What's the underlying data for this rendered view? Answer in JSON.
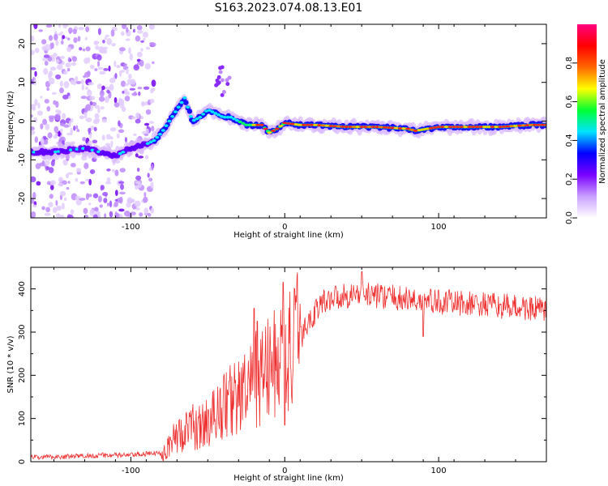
{
  "title": "S163.2023.074.08.13.E01",
  "chart_data": [
    {
      "type": "heatmap",
      "xlabel": "Height of straight line (km)",
      "ylabel": "Frequency (Hz)",
      "xlim": [
        -165,
        170
      ],
      "ylim": [
        -25,
        25
      ],
      "xticks": [
        -100,
        0,
        100
      ],
      "yticks": [
        -20,
        -10,
        0,
        10,
        20
      ],
      "colorbar": {
        "label": "Normalized spectral amplitude",
        "range": [
          0.0,
          1.0
        ],
        "ticks": [
          "0.0",
          "0.2",
          "0.4",
          "0.6",
          "0.8"
        ],
        "colors": [
          "#ffffff",
          "#c9a0ff",
          "#7a00ff",
          "#0000ff",
          "#00e5ff",
          "#00ff33",
          "#ffff00",
          "#ff6600",
          "#ff0000",
          "#ff0080"
        ]
      },
      "ridge": {
        "x": [
          -165,
          -150,
          -130,
          -120,
          -110,
          -100,
          -90,
          -85,
          -80,
          -75,
          -70,
          -65,
          -60,
          -55,
          -50,
          -45,
          -40,
          -35,
          -30,
          -25,
          -20,
          -15,
          -10,
          -5,
          0,
          10,
          20,
          40,
          60,
          80,
          85,
          100,
          120,
          140,
          160,
          170
        ],
        "y": [
          -8,
          -8,
          -7,
          -8,
          -9,
          -7,
          -6,
          -5,
          -3,
          0,
          3,
          6,
          0,
          1,
          3,
          2,
          1,
          1,
          0,
          -1,
          -1,
          -1,
          -3,
          -2,
          -0.5,
          -1,
          -1,
          -1.5,
          -1.5,
          -2,
          -2.5,
          -1.5,
          -1.5,
          -1.5,
          -1,
          -1
        ]
      }
    },
    {
      "type": "line",
      "xlabel": "Height of straight line (km)",
      "ylabel": "SNR (10 * v/v)",
      "xlim": [
        -165,
        170
      ],
      "ylim": [
        0,
        450
      ],
      "xticks": [
        -100,
        0,
        100
      ],
      "yticks": [
        0,
        100,
        200,
        300,
        400
      ],
      "color": "#ee3030",
      "envelope": {
        "x": [
          -165,
          -140,
          -120,
          -100,
          -90,
          -80,
          -75,
          -70,
          -65,
          -60,
          -55,
          -50,
          -45,
          -40,
          -35,
          -30,
          -25,
          -20,
          -15,
          -10,
          -5,
          0,
          5,
          10,
          15,
          20,
          25,
          30,
          40,
          50,
          60,
          80,
          100,
          120,
          140,
          160,
          170
        ],
        "y": [
          10,
          12,
          15,
          15,
          18,
          20,
          40,
          60,
          70,
          80,
          80,
          90,
          110,
          130,
          145,
          150,
          160,
          185,
          200,
          215,
          230,
          240,
          260,
          285,
          320,
          350,
          370,
          380,
          385,
          390,
          385,
          375,
          370,
          365,
          360,
          355,
          350
        ]
      },
      "spikes": [
        {
          "x": -20,
          "y": 355
        },
        {
          "x": -18,
          "y": 325
        },
        {
          "x": -1,
          "y": 415
        },
        {
          "x": 0,
          "y": 85
        },
        {
          "x": 50,
          "y": 440
        },
        {
          "x": 90,
          "y": 290
        }
      ]
    }
  ]
}
